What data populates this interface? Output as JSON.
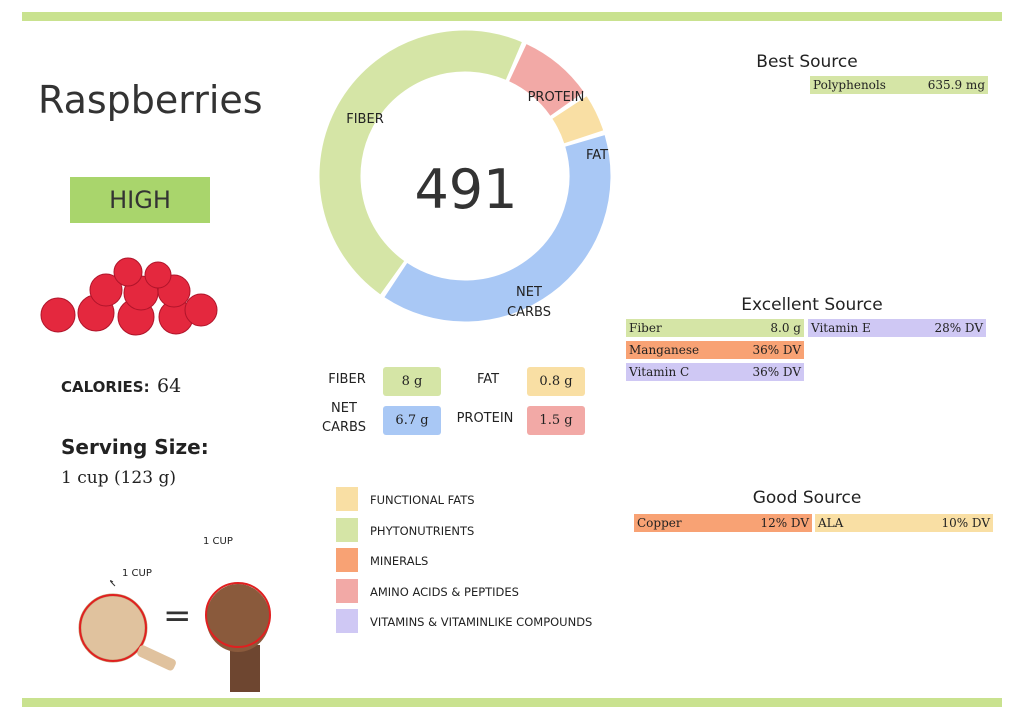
{
  "header": {
    "title": "Raspberries",
    "rating": "HIGH"
  },
  "score": "491",
  "calories": {
    "label": "CALORIES:",
    "value": "64"
  },
  "serving": {
    "label": "Serving Size:",
    "value": "1 cup (123 g)"
  },
  "measure": {
    "cup_label": "1 CUP",
    "fist_label": "1 CUP",
    "equals": "="
  },
  "donut": {
    "labels": [
      "PROTEIN",
      "FAT",
      "NET CARBS",
      "FIBER"
    ],
    "values": [
      1.5,
      0.8,
      6.7,
      8
    ],
    "value_labels": [
      "1.5 g",
      "0.8 g",
      "6.7 g",
      "8 g"
    ],
    "colors": [
      "#f2a9a6",
      "#f9dfa4",
      "#a9c8f5",
      "#d5e5a6"
    ]
  },
  "legend": [
    {
      "name": "FUNCTIONAL FATS",
      "color": "#f9dfa4"
    },
    {
      "name": "PHYTONUTRIENTS",
      "color": "#d5e5a6"
    },
    {
      "name": "MINERALS",
      "color": "#f8a274"
    },
    {
      "name": "AMINO ACIDS & PEPTIDES",
      "color": "#f2a9a6"
    },
    {
      "name": "VITAMINS & VITAMINLIKE COMPOUNDS",
      "color": "#cfc8f4"
    }
  ],
  "sources": [
    {
      "title": "Best Source",
      "items": [
        {
          "name": "Polyphenols",
          "amount": "635.9 mg",
          "color": "#d5e5a6"
        }
      ]
    },
    {
      "title": "Excellent Source",
      "items": [
        {
          "name": "Fiber",
          "amount": "8.0 g",
          "color": "#d5e5a6"
        },
        {
          "name": "Vitamin E",
          "amount": "28% DV",
          "color": "#cfc8f4"
        },
        {
          "name": "Manganese",
          "amount": "36% DV",
          "color": "#f8a274"
        },
        {
          "name": "Vitamin C",
          "amount": "36% DV",
          "color": "#cfc8f4"
        }
      ]
    },
    {
      "title": "Good Source",
      "items": [
        {
          "name": "Copper",
          "amount": "12% DV",
          "color": "#f8a274"
        },
        {
          "name": "ALA",
          "amount": "10% DV",
          "color": "#f9dfa4"
        }
      ]
    }
  ]
}
